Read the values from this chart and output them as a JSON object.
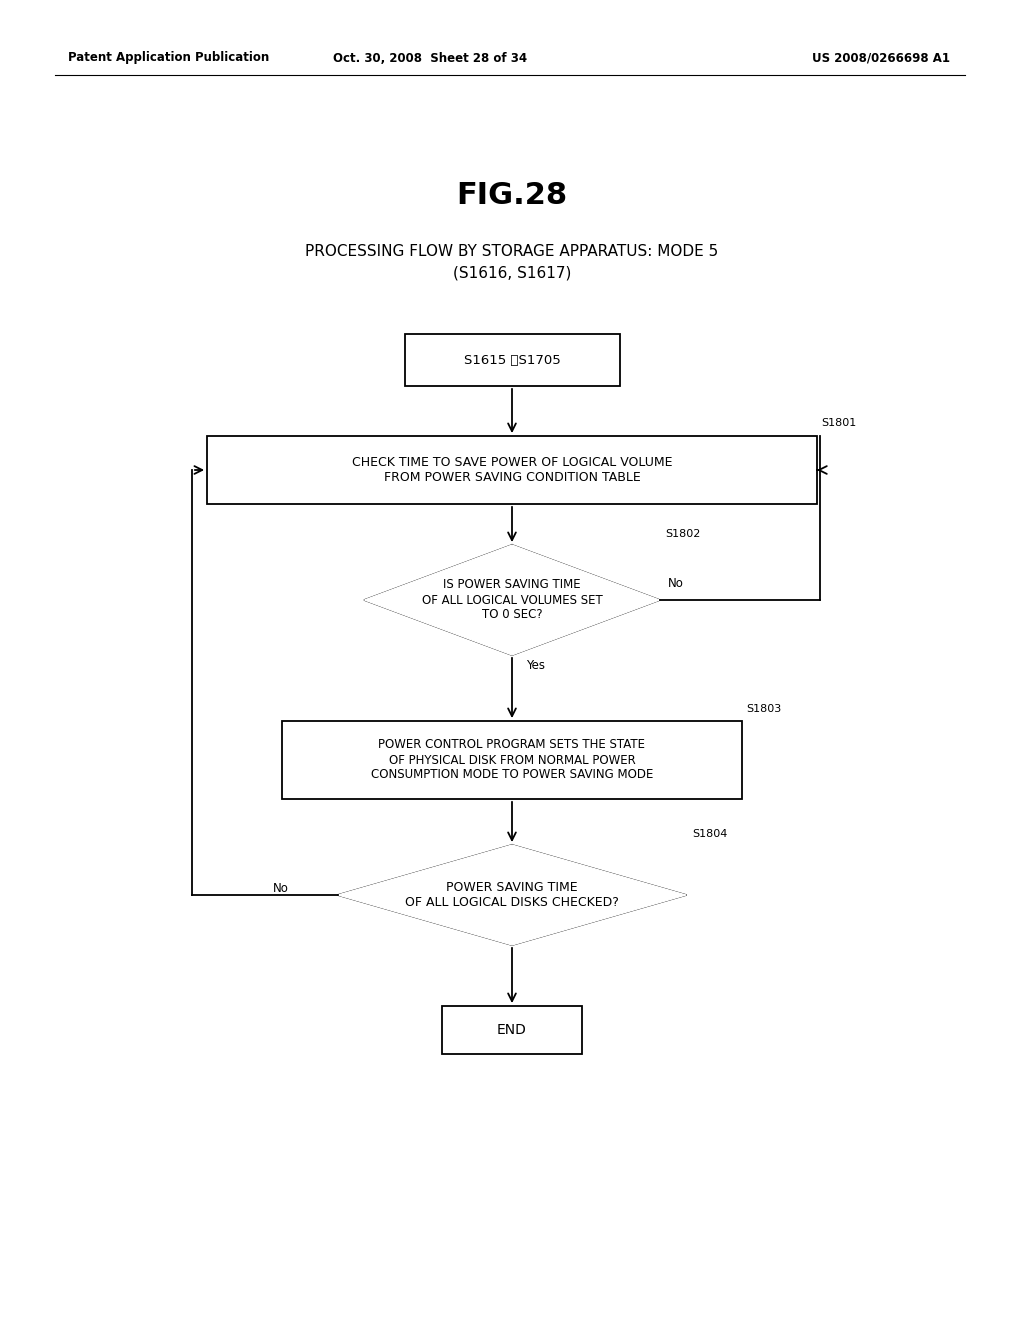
{
  "fig_title": "FIG.28",
  "subtitle_line1": "PROCESSING FLOW BY STORAGE APPARATUS: MODE 5",
  "subtitle_line2": "(S1616, S1617)",
  "header_left": "Patent Application Publication",
  "header_center": "Oct. 30, 2008  Sheet 28 of 34",
  "header_right": "US 2008/0266698 A1",
  "bg_color": "#ffffff",
  "text_color": "#000000",
  "start_label": "S1615 、S1705",
  "s1801_label": "CHECK TIME TO SAVE POWER OF LOGICAL VOLUME\nFROM POWER SAVING CONDITION TABLE",
  "s1801_step": "S1801",
  "s1802_label": "IS POWER SAVING TIME\nOF ALL LOGICAL VOLUMES SET\nTO 0 SEC?",
  "s1802_step": "S1802",
  "s1803_label": "POWER CONTROL PROGRAM SETS THE STATE\nOF PHYSICAL DISK FROM NORMAL POWER\nCONSUMPTION MODE TO POWER SAVING MODE",
  "s1803_step": "S1803",
  "s1804_label": "POWER SAVING TIME\nOF ALL LOGICAL DISKS CHECKED?",
  "s1804_step": "S1804",
  "end_label": "END",
  "yes_label": "Yes",
  "no_label": "No"
}
